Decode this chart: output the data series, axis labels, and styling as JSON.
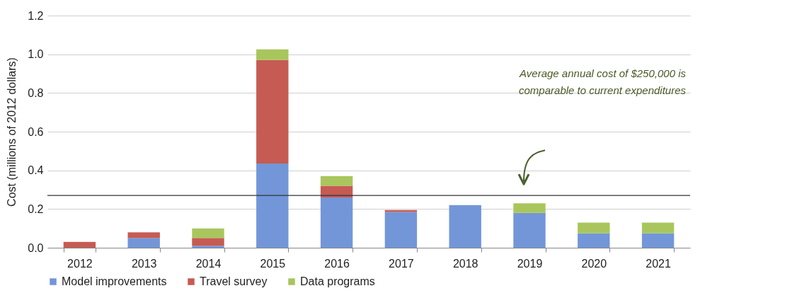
{
  "chart_data": {
    "type": "bar",
    "stacked": true,
    "ylabel": "Cost (millions of 2012 dollars)",
    "categories": [
      "2012",
      "2013",
      "2014",
      "2015",
      "2016",
      "2017",
      "2018",
      "2019",
      "2020",
      "2021"
    ],
    "series": [
      {
        "name": "Model improvements",
        "color": "#7396d8",
        "values": [
          0,
          0.05,
          0.01,
          0.435,
          0.26,
          0.185,
          0.22,
          0.18,
          0.075,
          0.075
        ]
      },
      {
        "name": "Travel survey",
        "color": "#c65b53",
        "values": [
          0.03,
          0.03,
          0.04,
          0.535,
          0.06,
          0.01,
          0,
          0,
          0,
          0
        ]
      },
      {
        "name": "Data programs",
        "color": "#a9c65c",
        "values": [
          0,
          0,
          0.05,
          0.055,
          0.05,
          0,
          0,
          0.05,
          0.055,
          0.055
        ]
      }
    ],
    "ylim": [
      0,
      1.2
    ],
    "yticks": [
      {
        "value": 0,
        "label": "0.0"
      },
      {
        "value": 0.2,
        "label": "0.2"
      },
      {
        "value": 0.4,
        "label": "0.4"
      },
      {
        "value": 0.6,
        "label": "0.6"
      },
      {
        "value": 0.8,
        "label": "0.8"
      },
      {
        "value": 1,
        "label": "1.0"
      },
      {
        "value": 1.2,
        "label": "1.2"
      }
    ],
    "grid": "y",
    "legend": "bottom",
    "ref_lines": [
      {
        "axis": "y",
        "value": 0.27,
        "color": "#333333"
      }
    ],
    "annotations": [
      "Average annual cost of $250,000 is\ncomparable to current expenditures"
    ]
  }
}
